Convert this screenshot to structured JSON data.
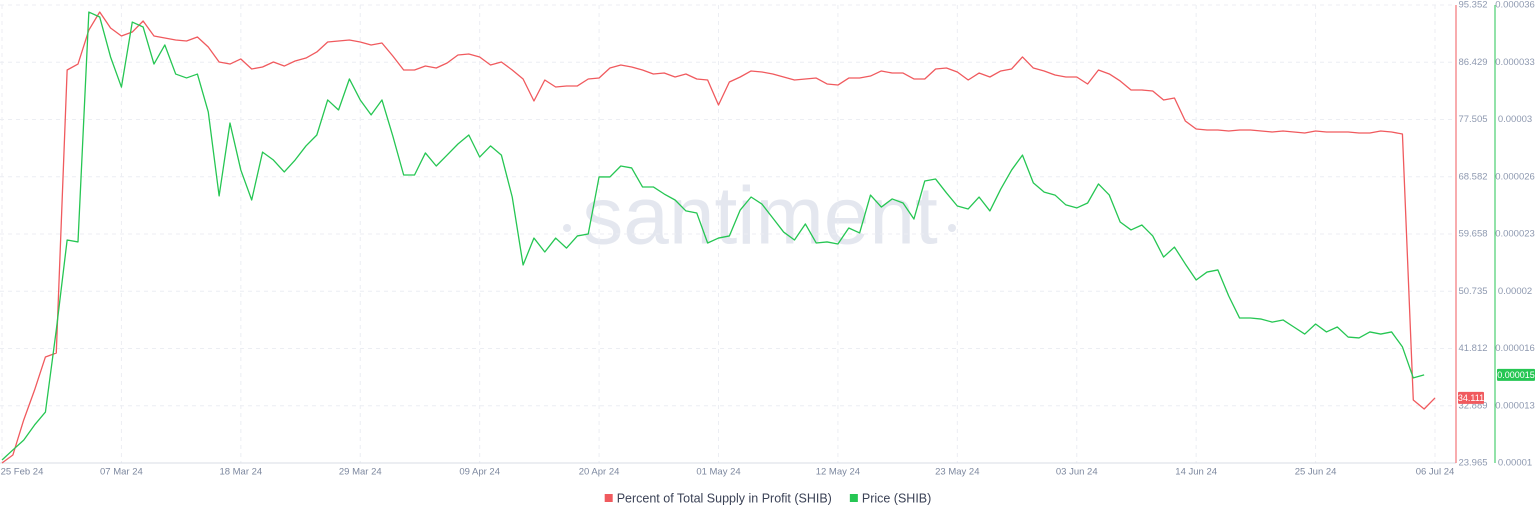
{
  "chart_data": {
    "type": "line",
    "watermark": "santiment",
    "categories": [
      "25 Feb 24",
      null,
      null,
      null,
      null,
      null,
      null,
      null,
      null,
      null,
      null,
      "07 Mar 24",
      null,
      null,
      null,
      null,
      null,
      null,
      null,
      null,
      null,
      null,
      "18 Mar 24",
      null,
      null,
      null,
      null,
      null,
      null,
      null,
      null,
      null,
      null,
      "29 Mar 24",
      null,
      null,
      null,
      null,
      null,
      null,
      null,
      null,
      null,
      null,
      "09 Apr 24",
      null,
      null,
      null,
      null,
      null,
      null,
      null,
      null,
      null,
      null,
      "20 Apr 24",
      null,
      null,
      null,
      null,
      null,
      null,
      null,
      null,
      null,
      null,
      "01 May 24",
      null,
      null,
      null,
      null,
      null,
      null,
      null,
      null,
      null,
      null,
      "12 May 24",
      null,
      null,
      null,
      null,
      null,
      null,
      null,
      null,
      null,
      null,
      "23 May 24",
      null,
      null,
      null,
      null,
      null,
      null,
      null,
      null,
      null,
      null,
      "03 Jun 24",
      null,
      null,
      null,
      null,
      null,
      null,
      null,
      null,
      null,
      null,
      "14 Jun 24",
      null,
      null,
      null,
      null,
      null,
      null,
      null,
      null,
      null,
      null,
      "25 Jun 24",
      null,
      null,
      null,
      null,
      null,
      null,
      null,
      null,
      null,
      null,
      "06 Jul 24"
    ],
    "series": [
      {
        "name": "Percent of Total Supply in Profit (SHIB)",
        "color": "#f05a5e",
        "current_value_label": "34.111",
        "values": [
          23.97,
          25.21,
          30.67,
          35.34,
          40.49,
          41.11,
          85.22,
          86.15,
          91.45,
          94.26,
          91.77,
          90.52,
          91.14,
          92.86,
          90.52,
          90.21,
          89.9,
          89.74,
          90.36,
          88.81,
          86.47,
          86.15,
          86.94,
          85.38,
          85.69,
          86.47,
          85.84,
          86.62,
          87.09,
          88.03,
          89.58,
          89.74,
          89.9,
          89.58,
          89.12,
          89.43,
          87.4,
          85.22,
          85.22,
          85.84,
          85.53,
          86.31,
          87.56,
          87.72,
          87.25,
          86.0,
          86.47,
          85.22,
          83.82,
          80.39,
          83.66,
          82.57,
          82.73,
          82.73,
          83.82,
          83.97,
          85.53,
          86.0,
          85.69,
          85.22,
          84.6,
          84.75,
          84.13,
          84.6,
          83.82,
          83.66,
          79.76,
          83.35,
          84.13,
          85.07,
          84.91,
          84.6,
          84.13,
          83.66,
          83.82,
          83.97,
          83.04,
          82.88,
          83.97,
          83.97,
          84.28,
          85.07,
          84.75,
          84.75,
          83.82,
          83.82,
          85.38,
          85.53,
          84.91,
          83.66,
          84.75,
          84.13,
          85.07,
          85.38,
          87.25,
          85.53,
          85.07,
          84.44,
          84.13,
          84.13,
          83.04,
          85.22,
          84.6,
          83.51,
          82.1,
          82.1,
          81.95,
          80.54,
          80.86,
          77.27,
          76.02,
          75.87,
          75.87,
          75.71,
          75.87,
          75.87,
          75.71,
          75.56,
          75.71,
          75.56,
          75.4,
          75.71,
          75.56,
          75.56,
          75.56,
          75.4,
          75.4,
          75.71,
          75.56,
          75.24,
          33.78,
          32.38,
          34.111
        ]
      },
      {
        "name": "Price (SHIB)",
        "color": "#26c653",
        "axis": "y2",
        "current_value_label": "0.000015",
        "values": [
          1.017e-05,
          1.074e-05,
          1.13e-05,
          1.216e-05,
          1.289e-05,
          1.755e-05,
          2.266e-05,
          2.255e-05,
          3.56e-05,
          3.532e-05,
          3.305e-05,
          3.134e-05,
          3.503e-05,
          3.475e-05,
          3.265e-05,
          3.373e-05,
          3.208e-05,
          3.186e-05,
          3.208e-05,
          2.993e-05,
          2.516e-05,
          2.93e-05,
          2.663e-05,
          2.493e-05,
          2.765e-05,
          2.72e-05,
          2.652e-05,
          2.72e-05,
          2.8e-05,
          2.862e-05,
          3.061e-05,
          3.004e-05,
          3.18e-05,
          3.061e-05,
          2.976e-05,
          3.061e-05,
          2.856e-05,
          2.635e-05,
          2.635e-05,
          2.76e-05,
          2.686e-05,
          2.748e-05,
          2.811e-05,
          2.862e-05,
          2.737e-05,
          2.8e-05,
          2.748e-05,
          2.51e-05,
          2.124e-05,
          2.277e-05,
          2.198e-05,
          2.277e-05,
          2.22e-05,
          2.289e-05,
          2.3e-05,
          2.624e-05,
          2.624e-05,
          2.686e-05,
          2.675e-05,
          2.567e-05,
          2.567e-05,
          2.527e-05,
          2.493e-05,
          2.431e-05,
          2.419e-05,
          2.249e-05,
          2.277e-05,
          2.289e-05,
          2.436e-05,
          2.51e-05,
          2.47e-05,
          2.391e-05,
          2.311e-05,
          2.266e-05,
          2.357e-05,
          2.249e-05,
          2.255e-05,
          2.243e-05,
          2.334e-05,
          2.306e-05,
          2.521e-05,
          2.453e-05,
          2.499e-05,
          2.476e-05,
          2.385e-05,
          2.601e-05,
          2.612e-05,
          2.533e-05,
          2.459e-05,
          2.442e-05,
          2.51e-05,
          2.431e-05,
          2.555e-05,
          2.663e-05,
          2.748e-05,
          2.59e-05,
          2.538e-05,
          2.521e-05,
          2.465e-05,
          2.448e-05,
          2.476e-05,
          2.584e-05,
          2.521e-05,
          2.368e-05,
          2.323e-05,
          2.351e-05,
          2.289e-05,
          2.169e-05,
          2.226e-05,
          2.13e-05,
          2.039e-05,
          2.084e-05,
          2.096e-05,
          1.948e-05,
          1.823e-05,
          1.823e-05,
          1.817e-05,
          1.8e-05,
          1.812e-05,
          1.772e-05,
          1.732e-05,
          1.789e-05,
          1.744e-05,
          1.772e-05,
          1.715e-05,
          1.71e-05,
          1.744e-05,
          1.732e-05,
          1.744e-05,
          1.659e-05,
          1.483e-05,
          1.5e-05,
          null
        ]
      }
    ],
    "ylim": [
      23.965,
      95.352
    ],
    "yticks": [
      23.965,
      32.889,
      41.812,
      50.735,
      59.658,
      68.582,
      77.505,
      86.429,
      95.352
    ],
    "y2lim": [
      1e-05,
      3.6e-05
    ],
    "y2ticks": [
      1e-05,
      {
        "value": 1.325e-05,
        "label": "0.000013"
      },
      {
        "value": 1.65e-05,
        "label": "0.000016"
      },
      {
        "value": 1.975e-05,
        "label": "0.00002"
      },
      2.3e-05,
      {
        "value": 2.625e-05,
        "label": "0.000026"
      },
      {
        "value": 2.95e-05,
        "label": "0.00003"
      },
      {
        "value": 3.275e-05,
        "label": "0.000033"
      },
      3.6e-05
    ],
    "grid": true,
    "legend": "bottom"
  }
}
